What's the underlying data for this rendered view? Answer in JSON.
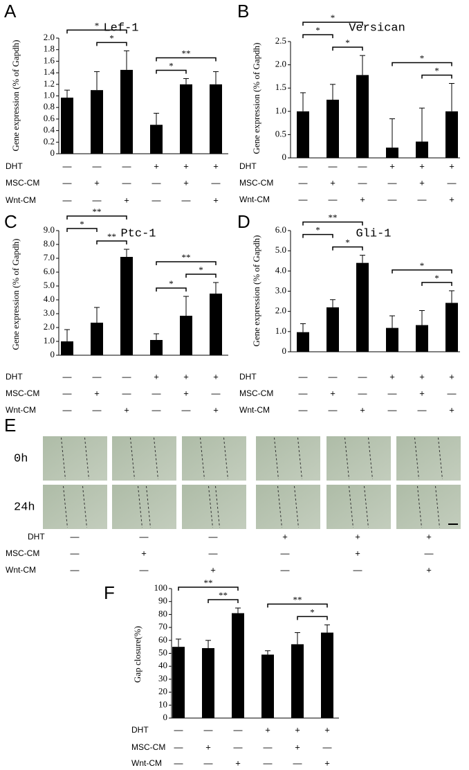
{
  "chart_data": [
    {
      "type": "bar",
      "panel": "A",
      "title": "Lef-1",
      "y_label": "Gene expression (% of Gapdh)",
      "color": "#000000",
      "values": [
        0.97,
        1.1,
        1.45,
        0.5,
        1.2,
        1.2
      ],
      "errors": [
        0.13,
        0.32,
        0.33,
        0.2,
        0.1,
        0.22
      ],
      "ylim": [
        0,
        2
      ],
      "yticks": [
        0,
        0.2,
        0.4,
        0.6,
        0.8,
        {
          "value": 1,
          "label": "1.0"
        },
        1.2,
        1.4,
        1.6,
        1.8,
        {
          "value": 2,
          "label": "2.0"
        }
      ],
      "brackets": [
        {
          "from": 0,
          "to": 2,
          "label": "*"
        },
        {
          "from": 1,
          "to": 2,
          "label": "*"
        },
        {
          "from": 3,
          "to": 5,
          "label": "**"
        },
        {
          "from": 3,
          "to": 4,
          "label": "*"
        }
      ],
      "conditions": [
        {
          "name": "DHT",
          "signs": [
            "—",
            "—",
            "—",
            "+",
            "+",
            "+"
          ]
        },
        {
          "name": "MSC-CM",
          "signs": [
            "—",
            "+",
            "—",
            "—",
            "+",
            "—"
          ]
        },
        {
          "name": "Wnt-CM",
          "signs": [
            "—",
            "—",
            "+",
            "—",
            "—",
            "+"
          ]
        }
      ]
    },
    {
      "type": "bar",
      "panel": "B",
      "title": "Versican",
      "y_label": "Gene expression (% of Gapdh)",
      "color": "#000000",
      "values": [
        1.0,
        1.25,
        1.78,
        0.22,
        0.35,
        1.0
      ],
      "errors": [
        0.4,
        0.33,
        0.42,
        0.62,
        0.72,
        0.6
      ],
      "ylim": [
        0,
        2.5
      ],
      "yticks": [
        0,
        0.5,
        {
          "value": 1,
          "label": "1.0"
        },
        1.5,
        {
          "value": 2,
          "label": "2.0"
        },
        2.5
      ],
      "brackets": [
        {
          "from": 0,
          "to": 2,
          "label": "*"
        },
        {
          "from": 1,
          "to": 2,
          "label": "*"
        },
        {
          "from": 0,
          "to": 1,
          "label": "*"
        },
        {
          "from": 3,
          "to": 5,
          "label": "*"
        },
        {
          "from": 4,
          "to": 5,
          "label": "*"
        }
      ],
      "conditions": [
        {
          "name": "DHT",
          "signs": [
            "—",
            "—",
            "—",
            "+",
            "+",
            "+"
          ]
        },
        {
          "name": "MSC-CM",
          "signs": [
            "—",
            "+",
            "—",
            "—",
            "+",
            "—"
          ]
        },
        {
          "name": "Wnt-CM",
          "signs": [
            "—",
            "—",
            "+",
            "—",
            "—",
            "+"
          ]
        }
      ]
    },
    {
      "type": "bar",
      "panel": "C",
      "title": "Ptc-1",
      "y_label": "Gene expression (% of Gapdh)",
      "color": "#000000",
      "values": [
        1.0,
        2.35,
        7.1,
        1.1,
        2.85,
        4.45
      ],
      "errors": [
        0.85,
        1.1,
        0.55,
        0.45,
        1.4,
        0.8
      ],
      "ylim": [
        0,
        9
      ],
      "yticks": [
        0,
        {
          "value": 1,
          "label": "1.0"
        },
        {
          "value": 2,
          "label": "2.0"
        },
        {
          "value": 3,
          "label": "3.0"
        },
        {
          "value": 4,
          "label": "4.0"
        },
        {
          "value": 5,
          "label": "5.0"
        },
        {
          "value": 6,
          "label": "6.0"
        },
        {
          "value": 7,
          "label": "7.0"
        },
        {
          "value": 8,
          "label": "8.0"
        },
        {
          "value": 9,
          "label": "9.0"
        }
      ],
      "brackets": [
        {
          "from": 0,
          "to": 2,
          "label": "**"
        },
        {
          "from": 1,
          "to": 2,
          "label": "**"
        },
        {
          "from": 0,
          "to": 1,
          "label": "*"
        },
        {
          "from": 3,
          "to": 5,
          "label": "**"
        },
        {
          "from": 3,
          "to": 4,
          "label": "*"
        },
        {
          "from": 4,
          "to": 5,
          "label": "*"
        }
      ],
      "conditions": [
        {
          "name": "DHT",
          "signs": [
            "—",
            "—",
            "—",
            "+",
            "+",
            "+"
          ]
        },
        {
          "name": "MSC-CM",
          "signs": [
            "—",
            "+",
            "—",
            "—",
            "+",
            "—"
          ]
        },
        {
          "name": "Wnt-CM",
          "signs": [
            "—",
            "—",
            "+",
            "—",
            "—",
            "+"
          ]
        }
      ]
    },
    {
      "type": "bar",
      "panel": "D",
      "title": "Gli-1",
      "y_label": "Gene expression (% of Gapdh)",
      "color": "#000000",
      "values": [
        0.97,
        2.2,
        4.4,
        1.18,
        1.32,
        2.42
      ],
      "errors": [
        0.42,
        0.38,
        0.38,
        0.6,
        0.72,
        0.6
      ],
      "ylim": [
        0,
        6
      ],
      "yticks": [
        0,
        {
          "value": 1,
          "label": "1.0"
        },
        {
          "value": 2,
          "label": "2.0"
        },
        {
          "value": 3,
          "label": "3.0"
        },
        {
          "value": 4,
          "label": "4.0"
        },
        {
          "value": 5,
          "label": "5.0"
        },
        {
          "value": 6,
          "label": "6.0"
        }
      ],
      "brackets": [
        {
          "from": 0,
          "to": 2,
          "label": "**"
        },
        {
          "from": 1,
          "to": 2,
          "label": "*"
        },
        {
          "from": 0,
          "to": 1,
          "label": "*"
        },
        {
          "from": 3,
          "to": 5,
          "label": "*"
        },
        {
          "from": 4,
          "to": 5,
          "label": "*"
        }
      ],
      "conditions": [
        {
          "name": "DHT",
          "signs": [
            "—",
            "—",
            "—",
            "+",
            "+",
            "+"
          ]
        },
        {
          "name": "MSC-CM",
          "signs": [
            "—",
            "+",
            "—",
            "—",
            "+",
            "—"
          ]
        },
        {
          "name": "Wnt-CM",
          "signs": [
            "—",
            "—",
            "+",
            "—",
            "—",
            "+"
          ]
        }
      ]
    },
    {
      "type": "bar",
      "panel": "F",
      "y_label": "Gap closure(%)",
      "color": "#000000",
      "values": [
        55,
        54,
        81,
        49,
        57,
        66
      ],
      "errors": [
        6,
        6,
        4,
        3,
        9,
        6
      ],
      "ylim": [
        0,
        100
      ],
      "yticks": [
        0,
        10,
        20,
        30,
        40,
        50,
        60,
        70,
        80,
        90,
        100
      ],
      "brackets": [
        {
          "from": 0,
          "to": 2,
          "label": "**"
        },
        {
          "from": 1,
          "to": 2,
          "label": "**"
        },
        {
          "from": 3,
          "to": 5,
          "label": "**"
        },
        {
          "from": 4,
          "to": 5,
          "label": "*"
        }
      ],
      "conditions": [
        {
          "name": "DHT",
          "signs": [
            "—",
            "—",
            "—",
            "+",
            "+",
            "+"
          ]
        },
        {
          "name": "MSC-CM",
          "signs": [
            "—",
            "+",
            "—",
            "—",
            "+",
            "—"
          ]
        },
        {
          "name": "Wnt-CM",
          "signs": [
            "—",
            "—",
            "+",
            "—",
            "—",
            "+"
          ]
        }
      ]
    }
  ],
  "panel_e": {
    "panel": "E",
    "time_labels": [
      "0h",
      "24h"
    ],
    "conditions": [
      {
        "name": "DHT",
        "signs": [
          "—",
          "—",
          "—",
          "+",
          "+",
          "+"
        ]
      },
      {
        "name": "MSC-CM",
        "signs": [
          "—",
          "+",
          "—",
          "—",
          "+",
          "—"
        ]
      },
      {
        "name": "Wnt-CM",
        "signs": [
          "—",
          "—",
          "+",
          "—",
          "—",
          "+"
        ]
      }
    ]
  }
}
